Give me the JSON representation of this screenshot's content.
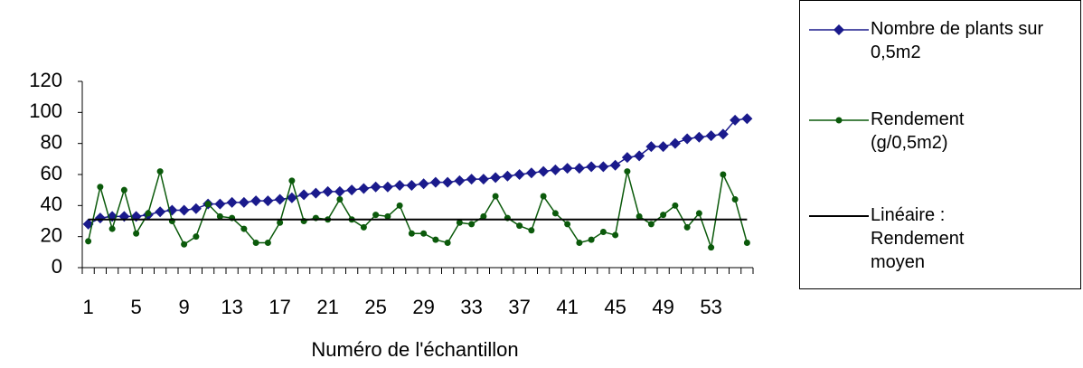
{
  "chart_data": {
    "type": "line",
    "x_label": "Numéro de l'échantillon",
    "categories": [
      "1",
      null,
      null,
      null,
      "5",
      null,
      null,
      null,
      "9",
      null,
      null,
      null,
      "13",
      null,
      null,
      null,
      "17",
      null,
      null,
      null,
      "21",
      null,
      null,
      null,
      "25",
      null,
      null,
      null,
      "29",
      null,
      null,
      null,
      "33",
      null,
      null,
      null,
      "37",
      null,
      null,
      null,
      "41",
      null,
      null,
      null,
      "45",
      null,
      null,
      null,
      "49",
      null,
      null,
      null,
      "53",
      null,
      null,
      null
    ],
    "ylim": [
      0,
      120
    ],
    "yticks": [
      0,
      20,
      40,
      60,
      80,
      100,
      120
    ],
    "grid": false,
    "legend": "right",
    "series": [
      {
        "name": "Nombre de plants sur 0,5m2",
        "color": "#1a1a8c",
        "marker": "diamond",
        "values": [
          28,
          32,
          33,
          33,
          33,
          34,
          36,
          37,
          37,
          38,
          41,
          41,
          42,
          42,
          43,
          43,
          44,
          45,
          47,
          48,
          49,
          49,
          50,
          51,
          52,
          52,
          53,
          53,
          54,
          55,
          55,
          56,
          57,
          57,
          58,
          59,
          60,
          61,
          62,
          63,
          64,
          64,
          65,
          65,
          66,
          71,
          72,
          78,
          78,
          80,
          83,
          84,
          85,
          86,
          95,
          96
        ]
      },
      {
        "name": "Rendement (g/0,5m2)",
        "color": "#0b5a0b",
        "marker": "circle",
        "values": [
          17,
          52,
          25,
          50,
          22,
          35,
          62,
          30,
          15,
          20,
          41,
          33,
          32,
          25,
          16,
          16,
          29,
          56,
          30,
          32,
          31,
          44,
          31,
          26,
          34,
          33,
          40,
          22,
          22,
          18,
          16,
          29,
          28,
          33,
          46,
          32,
          27,
          24,
          46,
          35,
          28,
          16,
          18,
          23,
          21,
          62,
          33,
          28,
          34,
          40,
          26,
          35,
          13,
          60,
          44,
          16
        ]
      },
      {
        "name": "Linéaire : Rendement moyen",
        "color": "#000000",
        "marker": "none",
        "values": [
          31,
          31,
          31,
          31,
          31,
          31,
          31,
          31,
          31,
          31,
          31,
          31,
          31,
          31,
          31,
          31,
          31,
          31,
          31,
          31,
          31,
          31,
          31,
          31,
          31,
          31,
          31,
          31,
          31,
          31,
          31,
          31,
          31,
          31,
          31,
          31,
          31,
          31,
          31,
          31,
          31,
          31,
          31,
          31,
          31,
          31,
          31,
          31,
          31,
          31,
          31,
          31,
          31,
          31,
          31,
          31
        ]
      }
    ]
  }
}
